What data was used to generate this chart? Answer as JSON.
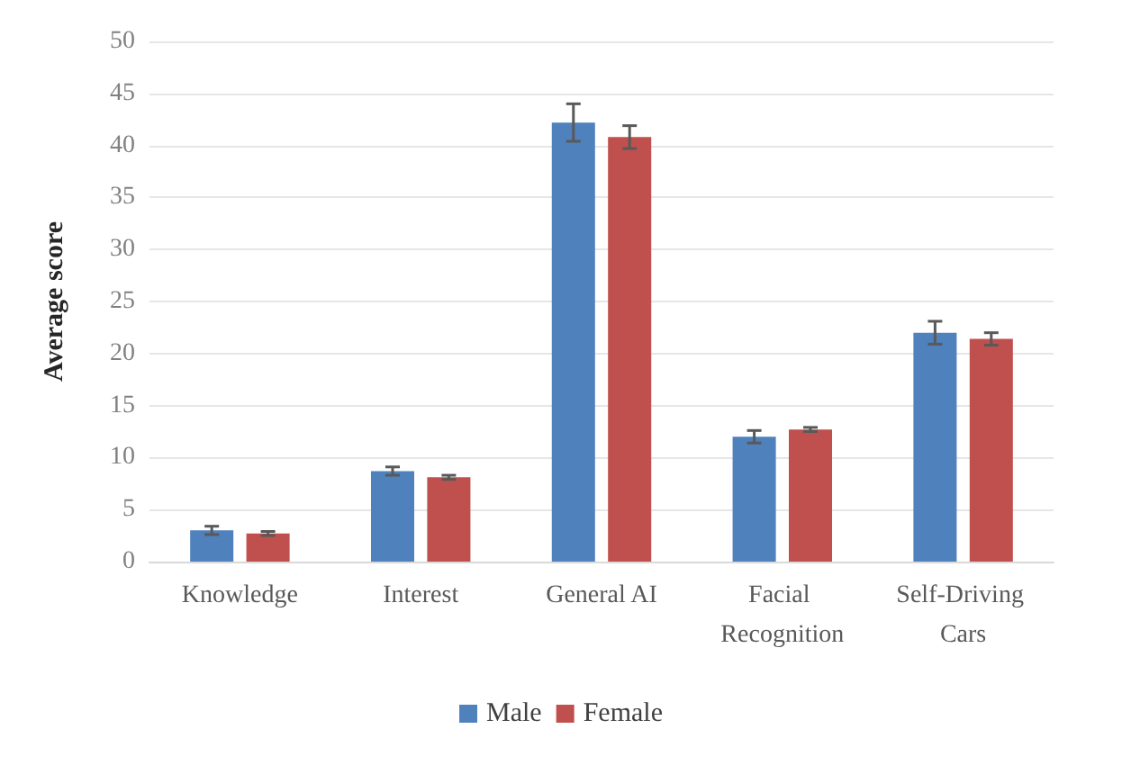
{
  "chart_data": {
    "type": "bar",
    "ylabel": "Average score",
    "categories": [
      "Knowledge",
      "Interest",
      "General AI",
      "Facial Recognition",
      "Self-Driving Cars"
    ],
    "series": [
      {
        "name": "Male",
        "color": "#4f81bd",
        "values": [
          3.0,
          8.7,
          42.2,
          12.0,
          22.0
        ],
        "errors": [
          0.4,
          0.4,
          1.8,
          0.6,
          1.1
        ]
      },
      {
        "name": "Female",
        "color": "#c0504d",
        "values": [
          2.7,
          8.1,
          40.8,
          12.7,
          21.4
        ],
        "errors": [
          0.2,
          0.2,
          1.1,
          0.2,
          0.6
        ]
      }
    ],
    "ylim": [
      0,
      50
    ],
    "yticks": [
      0,
      5,
      10,
      15,
      20,
      25,
      30,
      35,
      40,
      45,
      50
    ],
    "grid": "y",
    "legend": "bottom"
  }
}
